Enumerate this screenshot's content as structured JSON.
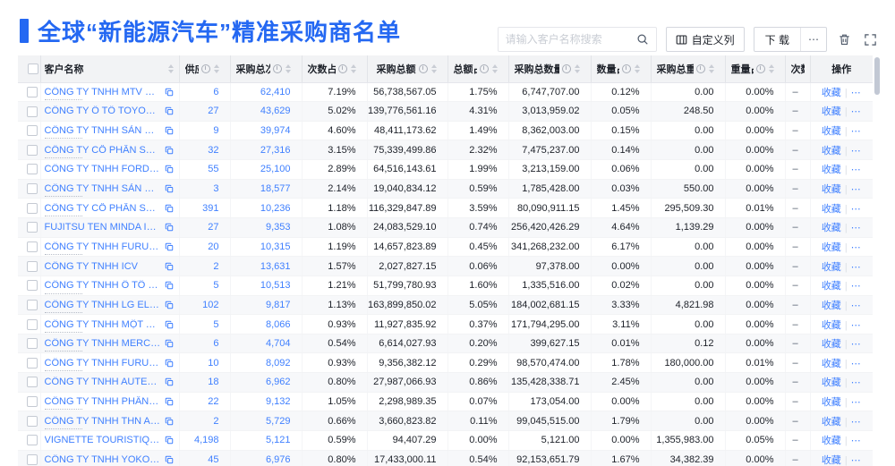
{
  "colors": {
    "accent": "#2468F2",
    "link": "#4080FF",
    "header_bg": "#F2F3F5",
    "text": "#1D2129"
  },
  "page": {
    "title": "全球“新能源汽车”精准采购商名单"
  },
  "toolbar": {
    "search_placeholder": "请输入客户名称搜索",
    "customize_columns_label": "自定义列",
    "download_label": "下 载",
    "download_more_label": "⋯"
  },
  "table": {
    "favorite_label": "收藏",
    "more_label": "⋯",
    "action_divider": "|",
    "columns": [
      {
        "key": "name",
        "label": "客户名称",
        "info": false,
        "sort": true,
        "align": "left"
      },
      {
        "key": "supplier",
        "label": "供应商",
        "info": true,
        "sort": true,
        "align": "right"
      },
      {
        "key": "purchases",
        "label": "采购总次数",
        "info": true,
        "sort": true,
        "align": "right"
      },
      {
        "key": "count_pct",
        "label": "次数占比",
        "info": true,
        "sort": true,
        "align": "right"
      },
      {
        "key": "amount",
        "label": "采购总额",
        "info": true,
        "sort": true,
        "align": "right"
      },
      {
        "key": "amount_pct",
        "label": "总额占比",
        "info": true,
        "sort": true,
        "align": "right"
      },
      {
        "key": "quantity",
        "label": "采购总数量",
        "info": true,
        "sort": true,
        "align": "right"
      },
      {
        "key": "qty_pct",
        "label": "数量占比",
        "info": true,
        "sort": true,
        "align": "right"
      },
      {
        "key": "weight",
        "label": "采购总重量",
        "info": true,
        "sort": true,
        "align": "right"
      },
      {
        "key": "weight_pct",
        "label": "重量占比",
        "info": true,
        "sort": true,
        "align": "right"
      },
      {
        "key": "trend",
        "label": "次数趋势",
        "info": false,
        "sort": false,
        "align": "left"
      },
      {
        "key": "action",
        "label": "操作",
        "info": false,
        "sort": false,
        "align": "center"
      }
    ],
    "rows": [
      {
        "name": "CÔNG TY TNHH MTV SẢN XUẤ...",
        "supplier": "6",
        "purchases": "62,410",
        "count_pct": "7.19%",
        "amount": "56,738,567.05",
        "amount_pct": "1.75%",
        "quantity": "6,747,707.00",
        "qty_pct": "0.12%",
        "weight": "0.00",
        "weight_pct": "0.00%",
        "trend": "–",
        "hint": true
      },
      {
        "name": "CÔNG TY Ô TÔ TOYOTA VIỆT ...",
        "supplier": "27",
        "purchases": "43,629",
        "count_pct": "5.02%",
        "amount": "139,776,561.16",
        "amount_pct": "4.31%",
        "quantity": "3,013,959.02",
        "qty_pct": "0.05%",
        "weight": "248.50",
        "weight_pct": "0.00%",
        "trend": "–",
        "hint": false
      },
      {
        "name": "CÔNG TY TNHH SẢN XUẤT VÀ ...",
        "supplier": "9",
        "purchases": "39,974",
        "count_pct": "4.60%",
        "amount": "48,411,173.62",
        "amount_pct": "1.49%",
        "quantity": "8,362,003.00",
        "qty_pct": "0.15%",
        "weight": "0.00",
        "weight_pct": "0.00%",
        "trend": "–",
        "hint": true
      },
      {
        "name": "CÔNG TY CỔ PHẦN SẢN XUẤT...",
        "supplier": "32",
        "purchases": "27,316",
        "count_pct": "3.15%",
        "amount": "75,339,499.86",
        "amount_pct": "2.32%",
        "quantity": "7,475,237.00",
        "qty_pct": "0.14%",
        "weight": "0.00",
        "weight_pct": "0.00%",
        "trend": "–",
        "hint": true
      },
      {
        "name": "CÔNG TY TNHH FORD VIỆT NAM",
        "supplier": "55",
        "purchases": "25,100",
        "count_pct": "2.89%",
        "amount": "64,516,143.61",
        "amount_pct": "1.99%",
        "quantity": "3,213,159.00",
        "qty_pct": "0.06%",
        "weight": "0.00",
        "weight_pct": "0.00%",
        "trend": "–",
        "hint": false
      },
      {
        "name": "CÔNG TY TNHH SẢN XUẤT VÀ ...",
        "supplier": "3",
        "purchases": "18,577",
        "count_pct": "2.14%",
        "amount": "19,040,834.12",
        "amount_pct": "0.59%",
        "quantity": "1,785,428.00",
        "qty_pct": "0.03%",
        "weight": "550.00",
        "weight_pct": "0.00%",
        "trend": "–",
        "hint": true
      },
      {
        "name": "CÔNG TY CỔ PHẦN SẢN XUẤT...",
        "supplier": "391",
        "purchases": "10,236",
        "count_pct": "1.18%",
        "amount": "116,329,847.89",
        "amount_pct": "3.59%",
        "quantity": "80,090,911.15",
        "qty_pct": "1.45%",
        "weight": "295,509.30",
        "weight_pct": "0.01%",
        "trend": "–",
        "hint": true
      },
      {
        "name": "FUJITSU TEN MINDA INDIA PVT...",
        "supplier": "27",
        "purchases": "9,353",
        "count_pct": "1.08%",
        "amount": "24,083,529.10",
        "amount_pct": "0.74%",
        "quantity": "256,420,426.29",
        "qty_pct": "4.64%",
        "weight": "1,139.29",
        "weight_pct": "0.00%",
        "trend": "–",
        "hint": false
      },
      {
        "name": "CÔNG TY TNHH FURUKAWA A...",
        "supplier": "20",
        "purchases": "10,315",
        "count_pct": "1.19%",
        "amount": "14,657,823.89",
        "amount_pct": "0.45%",
        "quantity": "341,268,232.00",
        "qty_pct": "6.17%",
        "weight": "0.00",
        "weight_pct": "0.00%",
        "trend": "–",
        "hint": true
      },
      {
        "name": "CÔNG TY TNHH ICV",
        "supplier": "2",
        "purchases": "13,631",
        "count_pct": "1.57%",
        "amount": "2,027,827.15",
        "amount_pct": "0.06%",
        "quantity": "97,378.00",
        "qty_pct": "0.00%",
        "weight": "0.00",
        "weight_pct": "0.00%",
        "trend": "–",
        "hint": false
      },
      {
        "name": "CÔNG TY TNHH Ô TÔ MITSUBI...",
        "supplier": "5",
        "purchases": "10,513",
        "count_pct": "1.21%",
        "amount": "51,799,780.93",
        "amount_pct": "1.60%",
        "quantity": "1,335,516.00",
        "qty_pct": "0.02%",
        "weight": "0.00",
        "weight_pct": "0.00%",
        "trend": "–",
        "hint": true
      },
      {
        "name": "CÔNG TY TNHH LG ELECTRON...",
        "supplier": "102",
        "purchases": "9,817",
        "count_pct": "1.13%",
        "amount": "163,899,850.02",
        "amount_pct": "5.05%",
        "quantity": "184,002,681.15",
        "qty_pct": "3.33%",
        "weight": "4,821.98",
        "weight_pct": "0.00%",
        "trend": "–",
        "hint": true
      },
      {
        "name": "CÔNG TY TNHH MỘT THÀNH V...",
        "supplier": "5",
        "purchases": "8,066",
        "count_pct": "0.93%",
        "amount": "11,927,835.92",
        "amount_pct": "0.37%",
        "quantity": "171,794,295.00",
        "qty_pct": "3.11%",
        "weight": "0.00",
        "weight_pct": "0.00%",
        "trend": "–",
        "hint": true
      },
      {
        "name": "CÔNG TY TNHH MERCEDES–B...",
        "supplier": "6",
        "purchases": "4,704",
        "count_pct": "0.54%",
        "amount": "6,614,027.93",
        "amount_pct": "0.20%",
        "quantity": "399,627.15",
        "qty_pct": "0.01%",
        "weight": "0.12",
        "weight_pct": "0.00%",
        "trend": "–",
        "hint": true
      },
      {
        "name": "CÔNG TY TNHH FURUKAWA A...",
        "supplier": "10",
        "purchases": "8,092",
        "count_pct": "0.93%",
        "amount": "9,356,382.12",
        "amount_pct": "0.29%",
        "quantity": "98,570,474.00",
        "qty_pct": "1.78%",
        "weight": "180,000.00",
        "weight_pct": "0.01%",
        "trend": "–",
        "hint": true
      },
      {
        "name": "CÔNG TY TNHH AUTEL VIỆT N...",
        "supplier": "18",
        "purchases": "6,962",
        "count_pct": "0.80%",
        "amount": "27,987,066.93",
        "amount_pct": "0.86%",
        "quantity": "135,428,338.71",
        "qty_pct": "2.45%",
        "weight": "0.00",
        "weight_pct": "0.00%",
        "trend": "–",
        "hint": false
      },
      {
        "name": "CÔNG TY TNHH PHÂN PHỐI T...",
        "supplier": "22",
        "purchases": "9,132",
        "count_pct": "1.05%",
        "amount": "2,298,989.35",
        "amount_pct": "0.07%",
        "quantity": "173,054.00",
        "qty_pct": "0.00%",
        "weight": "0.00",
        "weight_pct": "0.00%",
        "trend": "–",
        "hint": true
      },
      {
        "name": "CÔNG TY TNHH THN AUTOPAR...",
        "supplier": "2",
        "purchases": "5,729",
        "count_pct": "0.66%",
        "amount": "3,660,823.82",
        "amount_pct": "0.11%",
        "quantity": "99,045,515.00",
        "qty_pct": "1.79%",
        "weight": "0.00",
        "weight_pct": "0.00%",
        "trend": "–",
        "hint": true
      },
      {
        "name": "VIGNETTE TOURISTIQUE G UNI...",
        "supplier": "4,198",
        "purchases": "5,121",
        "count_pct": "0.59%",
        "amount": "94,407.29",
        "amount_pct": "0.00%",
        "quantity": "5,121.00",
        "qty_pct": "0.00%",
        "weight": "1,355,983.00",
        "weight_pct": "0.05%",
        "trend": "–",
        "hint": false
      },
      {
        "name": "CÔNG TY TNHH YOKOWO VIỆT...",
        "supplier": "45",
        "purchases": "6,976",
        "count_pct": "0.80%",
        "amount": "17,433,000.11",
        "amount_pct": "0.54%",
        "quantity": "92,153,651.79",
        "qty_pct": "1.67%",
        "weight": "34,382.39",
        "weight_pct": "0.00%",
        "trend": "–",
        "hint": false
      }
    ]
  }
}
